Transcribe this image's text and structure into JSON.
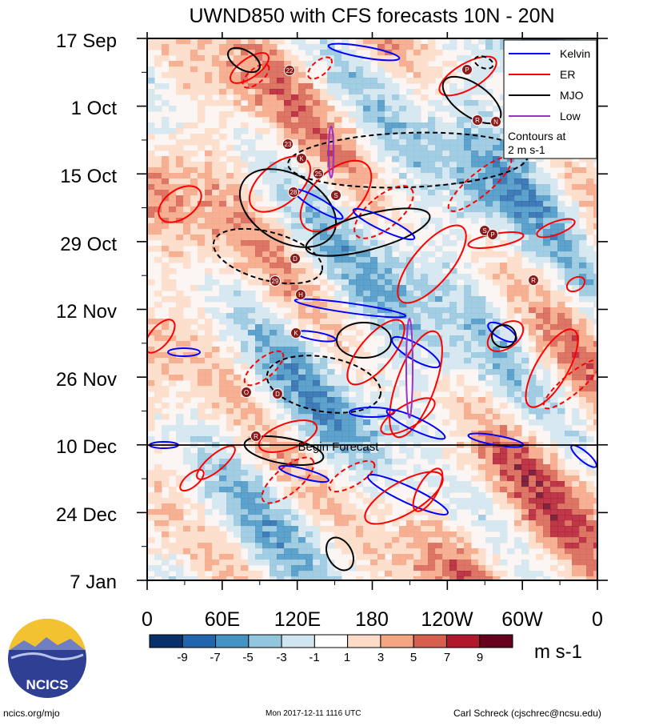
{
  "chart_data": {
    "type": "heatmap",
    "title": "UWND850 with CFS forecasts  10N - 20N",
    "x_axis": {
      "tick_labels": [
        "0",
        "60E",
        "120E",
        "180",
        "120W",
        "60W",
        "0"
      ],
      "range": [
        0,
        360
      ]
    },
    "y_axis": {
      "tick_labels": [
        "17 Sep",
        "1 Oct",
        "15 Oct",
        "29 Oct",
        "12 Nov",
        "26 Nov",
        "10 Dec",
        "24 Dec",
        "7 Jan"
      ]
    },
    "colorbar": {
      "levels": [
        "-9",
        "-7",
        "-5",
        "-3",
        "-1",
        "1",
        "3",
        "5",
        "7",
        "9"
      ],
      "colors": [
        "#08306b",
        "#2166ac",
        "#4393c3",
        "#92c5de",
        "#d1e5f0",
        "#ffffff",
        "#fddbc7",
        "#f4a582",
        "#d6604d",
        "#b2182b",
        "#67001f"
      ],
      "units": "m s-1"
    },
    "legend": {
      "entries": [
        {
          "name": "Kelvin",
          "color": "#0000ff"
        },
        {
          "name": "ER",
          "color": "#ff0000"
        },
        {
          "name": "MJO",
          "color": "#000000"
        },
        {
          "name": "Low",
          "color": "#9933cc"
        }
      ],
      "note_line1": "Contours at",
      "note_line2": "2 m s-1"
    },
    "forecast_line_label": "Begin Forecast",
    "storm_markers": [
      "22",
      "P",
      "R",
      "N",
      "23",
      "K",
      "25",
      "28",
      "S",
      "S",
      "P",
      "D",
      "29",
      "H",
      "R",
      "K",
      "O",
      "D",
      "R"
    ]
  },
  "logo_text": "NCICS",
  "footer": {
    "left": "ncics.org/mjo",
    "center": "Mon 2017-12-11 1116 UTC",
    "right": "Carl Schreck (cjschrec@ncsu.edu)"
  }
}
